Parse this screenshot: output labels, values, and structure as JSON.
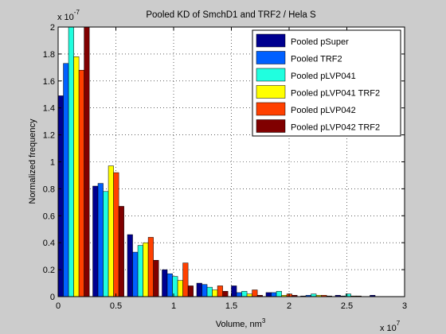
{
  "chart_data": {
    "type": "bar",
    "title": "Pooled KD of SmchD1 and TRF2 / Hela S",
    "xlabel_main": "Volume, nm",
    "xlabel_sup": "3",
    "ylabel": "Normalized frequency",
    "x_exponent_base": "x 10",
    "x_exponent_power": "7",
    "y_exponent_base": "x 10",
    "y_exponent_power": "-7",
    "xlim": [
      0,
      3
    ],
    "ylim": [
      0,
      2
    ],
    "xticks": [
      "0",
      "0.5",
      "1",
      "1.5",
      "2",
      "2.5",
      "3"
    ],
    "yticks": [
      "0",
      "0.2",
      "0.4",
      "0.6",
      "0.8",
      "1",
      "1.2",
      "1.4",
      "1.6",
      "1.8",
      "2"
    ],
    "grid": true,
    "legend_position": "top-right",
    "bin_width": 0.3,
    "bin_starts": [
      0,
      0.3,
      0.6,
      0.9,
      1.2,
      1.5,
      1.8,
      2.1,
      2.4,
      2.7
    ],
    "colors": [
      "#00008f",
      "#0060ff",
      "#20ffdf",
      "#ffff00",
      "#ff4000",
      "#800000"
    ],
    "series": [
      {
        "name": "Pooled pSuper",
        "values": [
          1.49,
          0.82,
          0.46,
          0.2,
          0.1,
          0.08,
          0.03,
          0.005,
          0.01,
          0.01
        ]
      },
      {
        "name": "Pooled TRF2",
        "values": [
          1.73,
          0.84,
          0.33,
          0.17,
          0.09,
          0.03,
          0.03,
          0.01,
          0.005,
          0.0
        ]
      },
      {
        "name": "Pooled pLVP041",
        "values": [
          2.0,
          0.78,
          0.38,
          0.15,
          0.07,
          0.04,
          0.04,
          0.02,
          0.02,
          0.0
        ]
      },
      {
        "name": "Pooled pLVP041 TRF2",
        "values": [
          1.78,
          0.97,
          0.4,
          0.12,
          0.05,
          0.02,
          0.01,
          0.01,
          0.005,
          0.0
        ]
      },
      {
        "name": "Pooled pLVP042",
        "values": [
          1.68,
          0.92,
          0.44,
          0.25,
          0.08,
          0.05,
          0.02,
          0.01,
          0.005,
          0.0
        ]
      },
      {
        "name": "Pooled pLVP042 TRF2",
        "values": [
          2.0,
          0.67,
          0.27,
          0.08,
          0.04,
          0.01,
          0.01,
          0.005,
          0.0,
          0.0
        ]
      }
    ]
  }
}
